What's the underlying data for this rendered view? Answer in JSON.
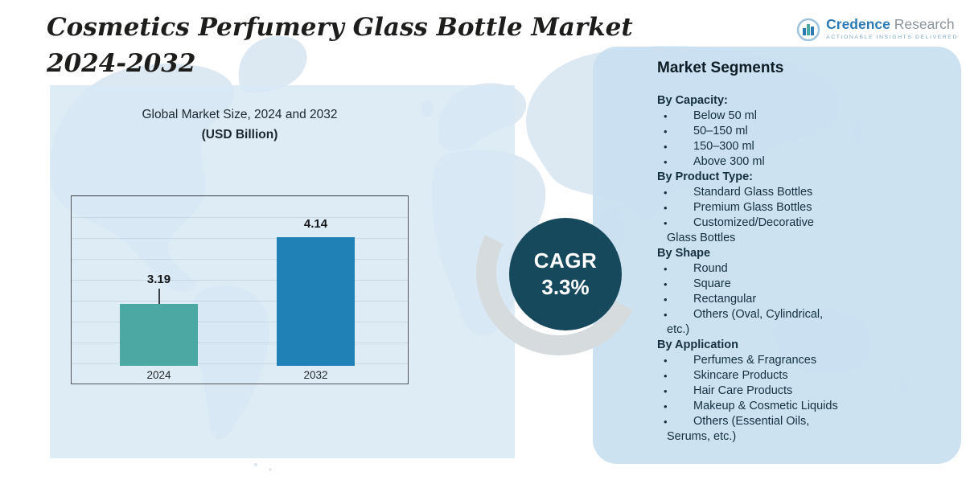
{
  "header": {
    "title_line1": "Cosmetics Perfumery Glass Bottle Market",
    "title_line2": "2024-2032"
  },
  "logo": {
    "brand_primary": "Credence",
    "brand_secondary": "Research",
    "tagline": "Actionable Insights Delivered"
  },
  "chart_data": {
    "type": "bar",
    "title": "Global Market Size, 2024 and 2032",
    "subtitle": "(USD Billion)",
    "categories": [
      "2024",
      "2032"
    ],
    "values": [
      3.19,
      4.14
    ],
    "unit": "USD Billion",
    "bar_colors": [
      "#4BA8A2",
      "#1F81B6"
    ],
    "ylim": [
      2.3,
      4.6
    ],
    "grid": true,
    "legend": "none"
  },
  "cagr": {
    "label": "CAGR",
    "value": "3.3%"
  },
  "segments": {
    "title": "Market Segments",
    "bullet_glyph": "•",
    "groups": [
      {
        "header": "By Capacity:",
        "items": [
          "Below 50 ml",
          "50–150 ml",
          "150–300 ml",
          "Above 300 ml"
        ]
      },
      {
        "header": "By Product Type:",
        "items": [
          "Standard Glass Bottles",
          "Premium Glass Bottles",
          "Customized/Decorative Glass Bottles"
        ]
      },
      {
        "header": "By Shape",
        "items": [
          "Round",
          "Square",
          "Rectangular",
          "Others (Oval, Cylindrical, etc.)"
        ]
      },
      {
        "header": "By Application",
        "items": [
          "Perfumes & Fragrances",
          "Skincare Products",
          "Hair Care Products",
          "Makeup & Cosmetic Liquids",
          "Others (Essential Oils, Serums, etc.)"
        ]
      }
    ]
  },
  "colors": {
    "accent_teal": "#4BA8A2",
    "accent_blue": "#1F81B6",
    "cagr_circle": "#17495C",
    "panel_chart": "#D7E8F4",
    "panel_segments": "#CAE0F0"
  }
}
